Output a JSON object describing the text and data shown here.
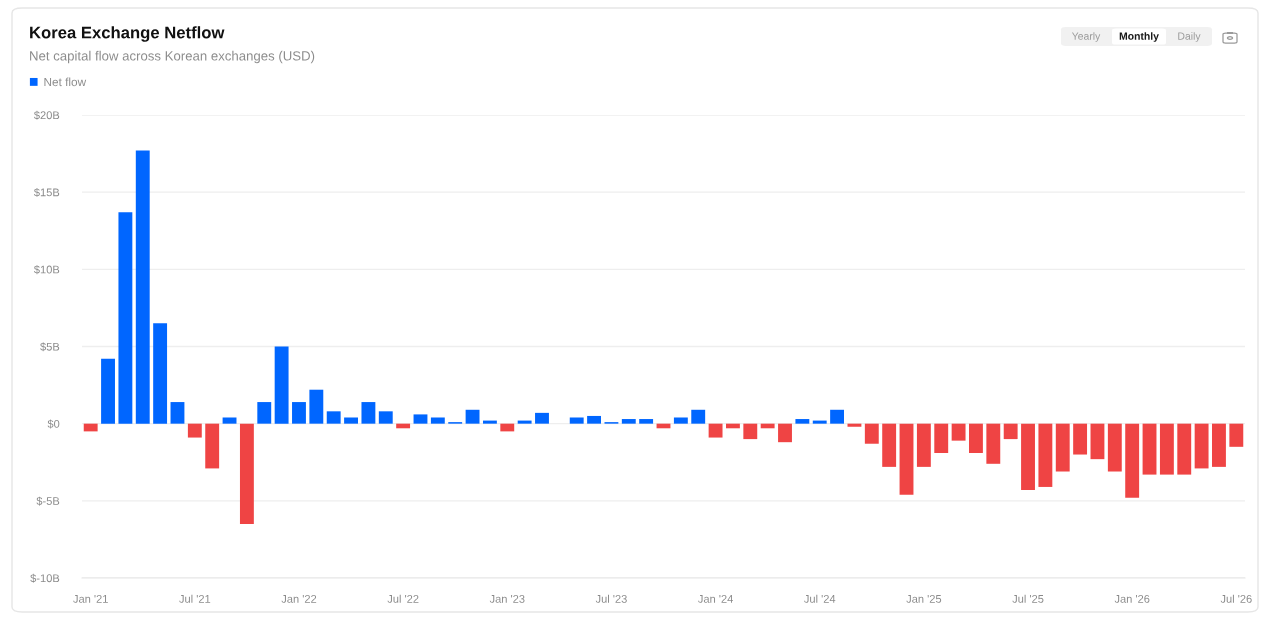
{
  "chart_data": {
    "type": "bar",
    "title": "Korea Exchange Netflow",
    "subtitle": "Net capital flow across Korean exchanges (USD)",
    "categories": [
      "Jan '21",
      null,
      null,
      null,
      null,
      null,
      "Jul '21",
      null,
      null,
      null,
      null,
      null,
      "Jan '22",
      null,
      null,
      null,
      null,
      null,
      "Jul '22",
      null,
      null,
      null,
      null,
      null,
      "Jan '23",
      null,
      null,
      null,
      null,
      null,
      "Jul '23",
      null,
      null,
      null,
      null,
      null,
      "Jan '24",
      null,
      null,
      null,
      null,
      null,
      "Jul '24",
      null,
      null,
      null,
      null,
      null,
      "Jan '25",
      null,
      null,
      null,
      null,
      null,
      "Jul '25",
      null,
      null,
      null,
      null,
      null,
      "Jan '26",
      null,
      null,
      null,
      null,
      null,
      "Jul '26"
    ],
    "series": [
      {
        "name": "Net flow",
        "color": "#0066ff",
        "values": [
          -0.5,
          4.2,
          13.7,
          17.7,
          6.5,
          1.4,
          -0.9,
          -2.9,
          0.4,
          -6.5,
          1.4,
          5.0,
          1.4,
          2.2,
          0.8,
          0.4,
          1.4,
          0.8,
          -0.3,
          0.6,
          0.4,
          0.1,
          0.9,
          0.2,
          -0.5,
          0.2,
          0.7,
          null,
          0.4,
          0.5,
          0.1,
          0.3,
          0.3,
          -0.3,
          0.4,
          0.9,
          -0.9,
          -0.3,
          -1.0,
          -0.3,
          -1.2,
          0.3,
          0.2,
          0.9,
          -0.2,
          -1.3,
          -2.8,
          -4.6,
          -2.8,
          -1.9,
          -1.1,
          -1.9,
          -2.6,
          -1.0,
          -4.3,
          -4.1,
          -3.1,
          -2.0,
          -2.3,
          -3.1,
          -4.8,
          -3.3,
          -3.3,
          -3.3,
          -2.9,
          -2.8,
          -1.5
        ],
        "colors": [
          "#ef4444",
          "#0066ff",
          "#0066ff",
          "#0066ff",
          "#0066ff",
          "#0066ff",
          "#ef4444",
          "#ef4444",
          "#0066ff",
          "#ef4444",
          "#0066ff",
          "#0066ff",
          "#0066ff",
          "#0066ff",
          "#0066ff",
          "#0066ff",
          "#0066ff",
          "#0066ff",
          "#ef4444",
          "#0066ff",
          "#0066ff",
          "#0066ff",
          "#0066ff",
          "#0066ff",
          "#ef4444",
          "#0066ff",
          "#0066ff",
          null,
          "#0066ff",
          "#0066ff",
          "#0066ff",
          "#0066ff",
          "#0066ff",
          "#ef4444",
          "#0066ff",
          "#0066ff",
          "#ef4444",
          "#ef4444",
          "#ef4444",
          "#ef4444",
          "#ef4444",
          "#0066ff",
          "#0066ff",
          "#0066ff",
          "#ef4444",
          "#ef4444",
          "#ef4444",
          "#ef4444",
          "#ef4444",
          "#ef4444",
          "#ef4444",
          "#ef4444",
          "#ef4444",
          "#ef4444",
          "#ef4444",
          "#ef4444",
          "#ef4444",
          "#ef4444",
          "#ef4444",
          "#ef4444",
          "#ef4444",
          "#ef4444",
          "#ef4444",
          "#ef4444",
          "#ef4444",
          "#ef4444",
          "#ef4444"
        ]
      }
    ],
    "ylim": [
      -10,
      20
    ],
    "yticks": [
      {
        "value": -10,
        "label": "$-10B"
      },
      {
        "value": -5,
        "label": "$-5B"
      },
      {
        "value": 0,
        "label": "$0"
      },
      {
        "value": 5,
        "label": "$5B"
      },
      {
        "value": 10,
        "label": "$10B"
      },
      {
        "value": 15,
        "label": "$15B"
      },
      {
        "value": 20,
        "label": "$20B"
      }
    ],
    "grid": "y",
    "legend": "top left",
    "annotations": [
      "Yearly",
      "Monthly",
      "Daily"
    ]
  }
}
